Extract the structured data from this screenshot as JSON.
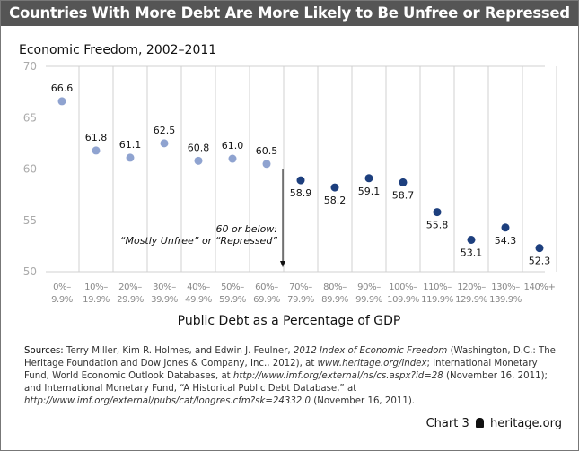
{
  "title": "Countries With More Debt Are More Likely to Be Unfree or Repressed",
  "chart_data": {
    "type": "scatter",
    "title": "Countries With More Debt Are More Likely to Be Unfree or Repressed",
    "ylabel": "Economic Freedom, 2002–2011",
    "xlabel": "Public Debt as a Percentage of GDP",
    "ylim": [
      50,
      70
    ],
    "yticks": [
      "50",
      "55",
      "60",
      "65",
      "70"
    ],
    "categories": [
      [
        "0%–",
        "9.9%"
      ],
      [
        "10%–",
        "19.9%"
      ],
      [
        "20%–",
        "29.9%"
      ],
      [
        "30%–",
        "39.9%"
      ],
      [
        "40%–",
        "49.9%"
      ],
      [
        "50%–",
        "59.9%"
      ],
      [
        "60%–",
        "69.9%"
      ],
      [
        "70%–",
        "79.9%"
      ],
      [
        "80%–",
        "89.9%"
      ],
      [
        "90%–",
        "99.9%"
      ],
      [
        "100%–",
        "109.9%"
      ],
      [
        "110%–",
        "119.9%"
      ],
      [
        "120%–",
        "129.9%"
      ],
      [
        "130%–",
        "139.9%"
      ],
      [
        "140%+",
        ""
      ]
    ],
    "values": [
      66.6,
      61.8,
      61.1,
      62.5,
      60.8,
      61.0,
      60.5,
      58.9,
      58.2,
      59.1,
      58.7,
      55.8,
      53.1,
      54.3,
      52.3
    ],
    "threshold": 60,
    "annotation": [
      "60 or below:",
      "“Mostly Unfree” or “Repressed”"
    ],
    "colors": {
      "above": "#8fa3d0",
      "below": "#1d3f7e",
      "grid": "#d0d0d0"
    }
  },
  "sources": {
    "label": "Sources:",
    "t1": " Terry Miller, Kim R. Holmes, and Edwin J. Feulner, ",
    "i1": "2012 Index of Economic Freedom",
    "t2": " (Washington, D.C.: The Heritage Foundation and Dow Jones & Company, Inc., 2012), at ",
    "i2": "www.heritage.org/index",
    "t3": "; International Monetary Fund, World Economic Outlook Databases, at ",
    "i3": "http://www.imf.org/external/ns/cs.aspx?id=28",
    "t4": " (November 16, 2011); and International Monetary Fund, “A Historical Public Debt Database,” at ",
    "i4": "http://www.imf.org/external/pubs/cat/longres.cfm?sk=24332.0",
    "t5": " (November 16, 2011)."
  },
  "footer": {
    "chart": "Chart 3",
    "site": "heritage.org"
  }
}
